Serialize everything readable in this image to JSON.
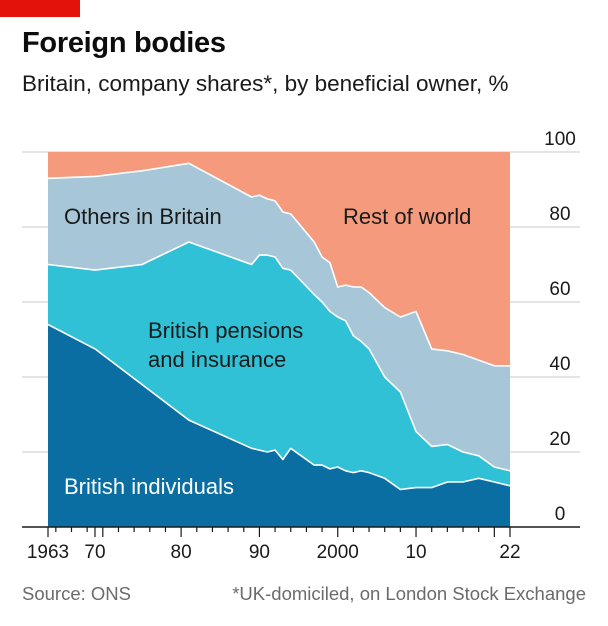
{
  "header": {
    "title": "Foreign bodies",
    "subtitle": "Britain, company shares*, by beneficial owner, %"
  },
  "footer": {
    "source": "Source: ONS",
    "note": "*UK-domiciled, on London Stock Exchange"
  },
  "colors": {
    "brand_red": "#e3120b",
    "british_individuals": "#0b6ea2",
    "british_pensions_insurance": "#30c1d6",
    "others_in_britain": "#a7c7d8",
    "rest_of_world": "#f59a7d",
    "gridline": "#c9c9c9",
    "axis": "#1a1a1a"
  },
  "chart_data": {
    "type": "area",
    "stacked": true,
    "title": "Foreign bodies",
    "subtitle": "Britain, company shares*, by beneficial owner, %",
    "xlabel": "",
    "ylabel": "",
    "xlim": [
      1961,
      2022
    ],
    "ylim": [
      0,
      100
    ],
    "x_ticks": [
      1963,
      1969,
      1980,
      1990,
      2000,
      2010,
      2022
    ],
    "x_tick_labels": [
      "1963",
      "70",
      "80",
      "90",
      "2000",
      "10",
      "22"
    ],
    "y_ticks": [
      0,
      20,
      40,
      60,
      80,
      100
    ],
    "y_tick_labels": [
      "0",
      "20",
      "40",
      "60",
      "80",
      "100"
    ],
    "y_axis_side": "right",
    "grid": true,
    "legend": "direct labels on areas",
    "x": [
      1963,
      1969,
      1975,
      1981,
      1989,
      1990,
      1991,
      1992,
      1993,
      1994,
      1997,
      1998,
      1999,
      2000,
      2001,
      2002,
      2003,
      2004,
      2006,
      2008,
      2010,
      2012,
      2014,
      2016,
      2018,
      2020,
      2022
    ],
    "series": [
      {
        "name": "British individuals",
        "values": [
          54,
          47.5,
          38,
          28.5,
          21,
          20.5,
          20,
          20.5,
          18,
          21,
          16.5,
          16.5,
          15.5,
          16,
          15,
          14.5,
          15,
          14.5,
          13,
          10,
          10.5,
          10.5,
          12,
          12,
          13,
          12,
          11
        ]
      },
      {
        "name": "British pensions and insurance",
        "values": [
          16,
          21,
          32,
          47.5,
          49,
          52,
          52.5,
          51.5,
          51,
          47.5,
          45.5,
          43.5,
          42,
          40,
          40,
          36.5,
          34.5,
          33,
          27,
          26,
          15,
          11,
          10,
          8,
          6,
          4,
          4
        ]
      },
      {
        "name": "Others in Britain",
        "values": [
          23,
          25,
          25,
          21,
          18,
          16,
          15,
          15,
          15,
          15,
          14,
          12,
          13,
          8,
          9.5,
          13,
          14.5,
          15,
          18.5,
          20,
          32,
          26,
          25,
          26,
          25.5,
          27,
          28
        ]
      },
      {
        "name": "Rest of world",
        "values": [
          7,
          6.5,
          5,
          3,
          12,
          11.5,
          12.5,
          13,
          16,
          16.5,
          24,
          28,
          29.5,
          36,
          35.5,
          36,
          36,
          37.5,
          41.5,
          44,
          42.5,
          52.5,
          53,
          54,
          55.5,
          57,
          57
        ]
      }
    ]
  }
}
